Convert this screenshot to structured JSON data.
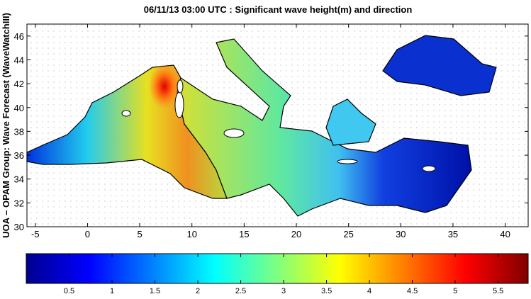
{
  "title": "06/11/13 03:00 UTC : Significant wave height(m) and direction",
  "ylabel": "UOA – OPAM Group: Wave Forecast  (WaveWatchIII)",
  "map": {
    "xlim": [
      -5.8,
      42.2
    ],
    "ylim": [
      30,
      47
    ],
    "xticks": [
      -5,
      0,
      5,
      10,
      15,
      20,
      25,
      30,
      35,
      40
    ],
    "yticks": [
      30,
      32,
      34,
      36,
      38,
      40,
      42,
      44,
      46
    ]
  },
  "colorbar": {
    "lim": [
      0,
      5.85
    ],
    "ticks": [
      0.5,
      1,
      1.5,
      2,
      2.5,
      3,
      3.5,
      4,
      4.5,
      5,
      5.5
    ],
    "colormap": "jet"
  }
}
